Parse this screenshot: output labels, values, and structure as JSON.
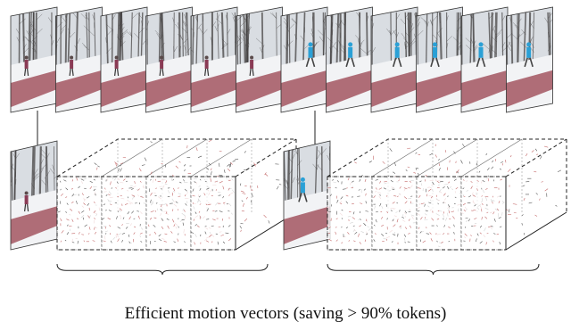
{
  "caption": "Efficient motion vectors (saving > 90% tokens)",
  "groups": [
    {
      "name": "group-1",
      "top_frames": 6,
      "keyframe_scene": "street-walk",
      "mv_blocks": 4
    },
    {
      "name": "group-2",
      "top_frames": 6,
      "keyframe_scene": "runner",
      "mv_blocks": 4
    }
  ],
  "colors": {
    "sky": "#d9dde2",
    "snow": "#f2f3f5",
    "road": "#a35560",
    "tree": "#3c3a3a",
    "jacket": "#2aa0d6",
    "frame_border": "#333333",
    "grid_border": "#222222",
    "mv_mark": "#c46a6a",
    "mv_mark_dark": "#555555"
  },
  "icons": {
    "arrow": "down-arrow-icon",
    "brace": "curly-brace-icon"
  }
}
